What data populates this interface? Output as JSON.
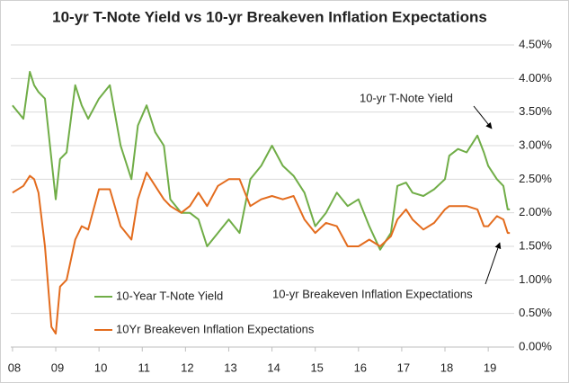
{
  "chart_data": {
    "type": "line",
    "title": "10-yr T-Note Yield vs 10-yr Breakeven Inflation Expectations",
    "x": [
      2008,
      2008.25,
      2008.4,
      2008.5,
      2008.6,
      2008.75,
      2008.9,
      2009,
      2009.1,
      2009.25,
      2009.45,
      2009.6,
      2009.75,
      2010,
      2010.25,
      2010.5,
      2010.75,
      2010.9,
      2011.1,
      2011.3,
      2011.5,
      2011.65,
      2011.9,
      2012.1,
      2012.3,
      2012.5,
      2012.75,
      2013,
      2013.25,
      2013.5,
      2013.75,
      2014,
      2014.25,
      2014.5,
      2014.75,
      2015,
      2015.25,
      2015.5,
      2015.75,
      2016,
      2016.25,
      2016.5,
      2016.75,
      2016.9,
      2017.1,
      2017.25,
      2017.5,
      2017.75,
      2018,
      2018.1,
      2018.3,
      2018.5,
      2018.75,
      2018.9,
      2019,
      2019.2,
      2019.35,
      2019.45,
      2019.5
    ],
    "series": [
      {
        "name": "10-Year T-Note Yield",
        "color": "#70ad47",
        "values": [
          3.6,
          3.4,
          4.1,
          3.9,
          3.8,
          3.7,
          2.8,
          2.2,
          2.8,
          2.9,
          3.9,
          3.6,
          3.4,
          3.7,
          3.9,
          3.0,
          2.5,
          3.3,
          3.6,
          3.2,
          3.0,
          2.2,
          2.0,
          2.0,
          1.9,
          1.5,
          1.7,
          1.9,
          1.7,
          2.5,
          2.7,
          3.0,
          2.7,
          2.55,
          2.3,
          1.8,
          2.0,
          2.3,
          2.1,
          2.2,
          1.8,
          1.45,
          1.7,
          2.4,
          2.45,
          2.3,
          2.25,
          2.35,
          2.5,
          2.85,
          2.95,
          2.9,
          3.15,
          2.9,
          2.7,
          2.5,
          2.4,
          2.05,
          2.05
        ]
      },
      {
        "name": "10Yr Breakeven Inflation Expectations",
        "color": "#e36c1e",
        "values": [
          2.3,
          2.4,
          2.55,
          2.5,
          2.3,
          1.5,
          0.3,
          0.2,
          0.9,
          1.0,
          1.6,
          1.8,
          1.75,
          2.35,
          2.35,
          1.8,
          1.6,
          2.2,
          2.6,
          2.4,
          2.2,
          2.1,
          2.0,
          2.1,
          2.3,
          2.1,
          2.4,
          2.5,
          2.5,
          2.1,
          2.2,
          2.25,
          2.2,
          2.25,
          1.9,
          1.7,
          1.85,
          1.8,
          1.5,
          1.5,
          1.6,
          1.5,
          1.65,
          1.9,
          2.05,
          1.9,
          1.75,
          1.85,
          2.05,
          2.1,
          2.1,
          2.1,
          2.05,
          1.8,
          1.8,
          1.95,
          1.9,
          1.7,
          1.7
        ]
      }
    ],
    "annotations": [
      "10-yr T-Note Yield",
      "10-yr Breakeven Inflation Expectations"
    ],
    "xlim": [
      2007.96,
      2019.6
    ],
    "xticks": [
      {
        "value": 2008,
        "label": "08"
      },
      {
        "value": 2009,
        "label": "09"
      },
      {
        "value": 2010,
        "label": "10"
      },
      {
        "value": 2011,
        "label": "11"
      },
      {
        "value": 2012,
        "label": "12"
      },
      {
        "value": 2013,
        "label": "13"
      },
      {
        "value": 2014,
        "label": "14"
      },
      {
        "value": 2015,
        "label": "15"
      },
      {
        "value": 2016,
        "label": "16"
      },
      {
        "value": 2017,
        "label": "17"
      },
      {
        "value": 2018,
        "label": "18"
      },
      {
        "value": 2019,
        "label": "19"
      }
    ],
    "ylim": [
      0,
      4.5
    ],
    "yticks": [
      {
        "value": 0,
        "label": "0.00%"
      },
      {
        "value": 0.5,
        "label": "0.50%"
      },
      {
        "value": 1,
        "label": "1.00%"
      },
      {
        "value": 1.5,
        "label": "1.50%"
      },
      {
        "value": 2,
        "label": "2.00%"
      },
      {
        "value": 2.5,
        "label": "2.50%"
      },
      {
        "value": 3,
        "label": "3.00%"
      },
      {
        "value": 3.5,
        "label": "3.50%"
      },
      {
        "value": 4,
        "label": "4.00%"
      },
      {
        "value": 4.5,
        "label": "4.50%"
      }
    ],
    "grid": true
  }
}
